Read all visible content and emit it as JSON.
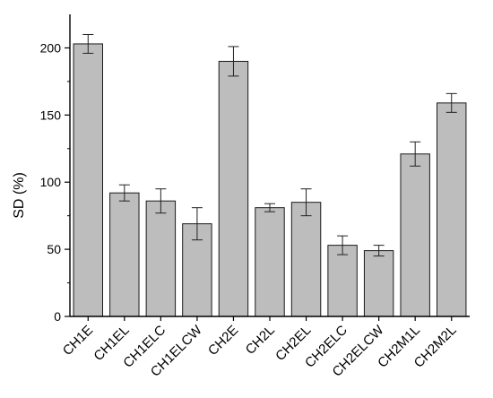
{
  "chart_data": {
    "type": "bar",
    "title": "",
    "xlabel": "",
    "ylabel": "SD (%)",
    "ylim": [
      0,
      225
    ],
    "yticks": [
      0,
      50,
      100,
      150,
      200
    ],
    "grid": false,
    "categories": [
      "CH1E",
      "CH1EL",
      "CH1ELC",
      "CH1ELCW",
      "CH2E",
      "CH2L",
      "CH2EL",
      "CH2ELC",
      "CH2ELCW",
      "CH2M1L",
      "CH2M2L"
    ],
    "values": [
      203,
      92,
      86,
      69,
      190,
      81,
      85,
      53,
      49,
      121,
      159
    ],
    "errors": [
      7,
      6,
      9,
      12,
      11,
      3,
      10,
      7,
      4,
      9,
      7
    ],
    "bar_color": "#bdbdbd",
    "edge_color": "#1a1a1a"
  }
}
